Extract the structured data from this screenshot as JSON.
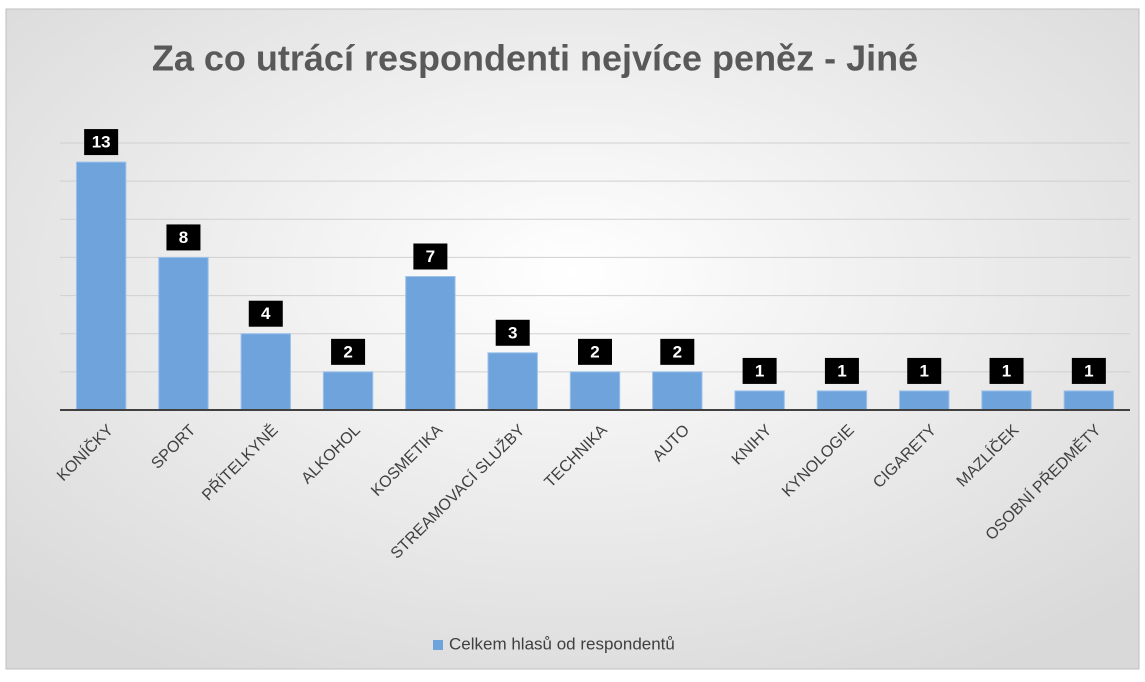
{
  "chart_data": {
    "type": "bar",
    "title": "Za co utrácí respondenti nejvíce peněz - Jiné",
    "categories": [
      "KONÍČKY",
      "SPORT",
      "PŘÍTELKYNĚ",
      "ALKOHOL",
      "KOSMETIKA",
      "STREAMOVACÍ SLUŽBY",
      "TECHNIKA",
      "AUTO",
      "KNIHY",
      "KYNOLOGIE",
      "CIGARETY",
      "MAZLÍČEK",
      "OSOBNÍ PŘEDMĚTY"
    ],
    "series": [
      {
        "name": "Celkem hlasů od respondentů",
        "color": "#6fa3dc",
        "values": [
          13,
          8,
          4,
          2,
          7,
          3,
          2,
          2,
          1,
          1,
          1,
          1,
          1
        ]
      }
    ],
    "ylim": [
      0,
      14
    ],
    "yticks": [
      0,
      2,
      4,
      6,
      8,
      10,
      12,
      14
    ],
    "grid": true,
    "legend": "bottom"
  }
}
